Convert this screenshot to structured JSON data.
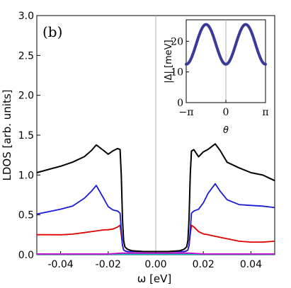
{
  "chart_data": [
    {
      "type": "line",
      "panel_label": "(b)",
      "xlabel": "ω [eV]",
      "ylabel": "LDOS [arb. units]",
      "xlim": [
        -0.05,
        0.05
      ],
      "ylim": [
        0.0,
        3.0
      ],
      "x_ticks": [
        "-0.04",
        "-0.02",
        "0.00",
        "0.02",
        "0.04"
      ],
      "y_ticks": [
        "0.0",
        "0.5",
        "1.0",
        "1.5",
        "2.0",
        "2.5",
        "3.0"
      ],
      "grid": false,
      "series": [
        {
          "color": "#000000",
          "x": [
            -0.05,
            -0.045,
            -0.04,
            -0.035,
            -0.03,
            -0.027,
            -0.025,
            -0.022,
            -0.02,
            -0.018,
            -0.016,
            -0.015,
            -0.0145,
            -0.014,
            -0.0135,
            -0.013,
            -0.012,
            -0.01,
            -0.005,
            0.0,
            0.005,
            0.01,
            0.012,
            0.013,
            0.0135,
            0.014,
            0.0145,
            0.015,
            0.016,
            0.018,
            0.02,
            0.022,
            0.025,
            0.027,
            0.03,
            0.035,
            0.04,
            0.045,
            0.05
          ],
          "y": [
            1.03,
            1.06,
            1.1,
            1.16,
            1.24,
            1.32,
            1.38,
            1.3,
            1.25,
            1.3,
            1.34,
            1.32,
            1.0,
            0.45,
            0.18,
            0.1,
            0.07,
            0.05,
            0.04,
            0.04,
            0.04,
            0.05,
            0.07,
            0.1,
            0.18,
            0.45,
            1.0,
            1.3,
            1.32,
            1.24,
            1.3,
            1.32,
            1.38,
            1.3,
            1.16,
            1.1,
            1.04,
            1.0,
            0.92
          ]
        },
        {
          "color": "#1a1ad6",
          "x": [
            -0.05,
            -0.045,
            -0.04,
            -0.035,
            -0.03,
            -0.027,
            -0.025,
            -0.022,
            -0.02,
            -0.018,
            -0.016,
            -0.015,
            -0.0145,
            -0.014,
            -0.0135,
            -0.013,
            -0.012,
            -0.01,
            -0.005,
            0.0,
            0.005,
            0.01,
            0.012,
            0.013,
            0.0135,
            0.014,
            0.0145,
            0.015,
            0.016,
            0.018,
            0.02,
            0.022,
            0.025,
            0.027,
            0.03,
            0.035,
            0.04,
            0.045,
            0.05
          ],
          "y": [
            0.5,
            0.53,
            0.57,
            0.62,
            0.72,
            0.8,
            0.86,
            0.7,
            0.6,
            0.57,
            0.56,
            0.52,
            0.3,
            0.12,
            0.06,
            0.05,
            0.04,
            0.04,
            0.04,
            0.04,
            0.04,
            0.04,
            0.04,
            0.05,
            0.06,
            0.12,
            0.3,
            0.52,
            0.56,
            0.58,
            0.65,
            0.76,
            0.88,
            0.8,
            0.7,
            0.64,
            0.62,
            0.6,
            0.58
          ]
        },
        {
          "color": "#e00000",
          "x": [
            -0.05,
            -0.045,
            -0.04,
            -0.035,
            -0.03,
            -0.025,
            -0.022,
            -0.02,
            -0.018,
            -0.016,
            -0.015,
            -0.0145,
            -0.014,
            -0.0135,
            -0.013,
            -0.012,
            -0.01,
            -0.005,
            0.0,
            0.005,
            0.01,
            0.012,
            0.013,
            0.0135,
            0.014,
            0.0145,
            0.015,
            0.016,
            0.018,
            0.02,
            0.022,
            0.025,
            0.03,
            0.035,
            0.04,
            0.045,
            0.05
          ],
          "y": [
            0.24,
            0.25,
            0.26,
            0.27,
            0.28,
            0.29,
            0.3,
            0.31,
            0.33,
            0.36,
            0.37,
            0.25,
            0.12,
            0.06,
            0.05,
            0.04,
            0.04,
            0.04,
            0.04,
            0.04,
            0.04,
            0.04,
            0.05,
            0.06,
            0.12,
            0.25,
            0.37,
            0.36,
            0.3,
            0.26,
            0.24,
            0.22,
            0.2,
            0.18,
            0.17,
            0.16,
            0.16
          ]
        },
        {
          "color": "#cc00cc",
          "x": [
            -0.05,
            -0.02,
            -0.014,
            -0.01,
            0.0,
            0.01,
            0.014,
            0.02,
            0.05
          ],
          "y": [
            0.01,
            0.01,
            0.02,
            0.02,
            0.02,
            0.02,
            0.02,
            0.01,
            0.01
          ]
        },
        {
          "color": "#00b8b8",
          "x": [
            -0.05,
            -0.02,
            0.0,
            0.02,
            0.05
          ],
          "y": [
            0.005,
            0.005,
            0.005,
            0.005,
            0.005
          ]
        }
      ]
    },
    {
      "type": "line",
      "ylabel": "|Δ| [meV]",
      "xlabel": "θ",
      "xlim": [
        -3.14159,
        3.14159
      ],
      "ylim": [
        0,
        27
      ],
      "x_ticks": [
        "−π",
        "0",
        "π"
      ],
      "y_ticks": [
        "0",
        "10",
        "20"
      ],
      "grid": false,
      "series": [
        {
          "color": "#3a3a9a",
          "function": "19 - 6.5*cos(2*theta)",
          "x": [],
          "y": []
        }
      ]
    }
  ]
}
